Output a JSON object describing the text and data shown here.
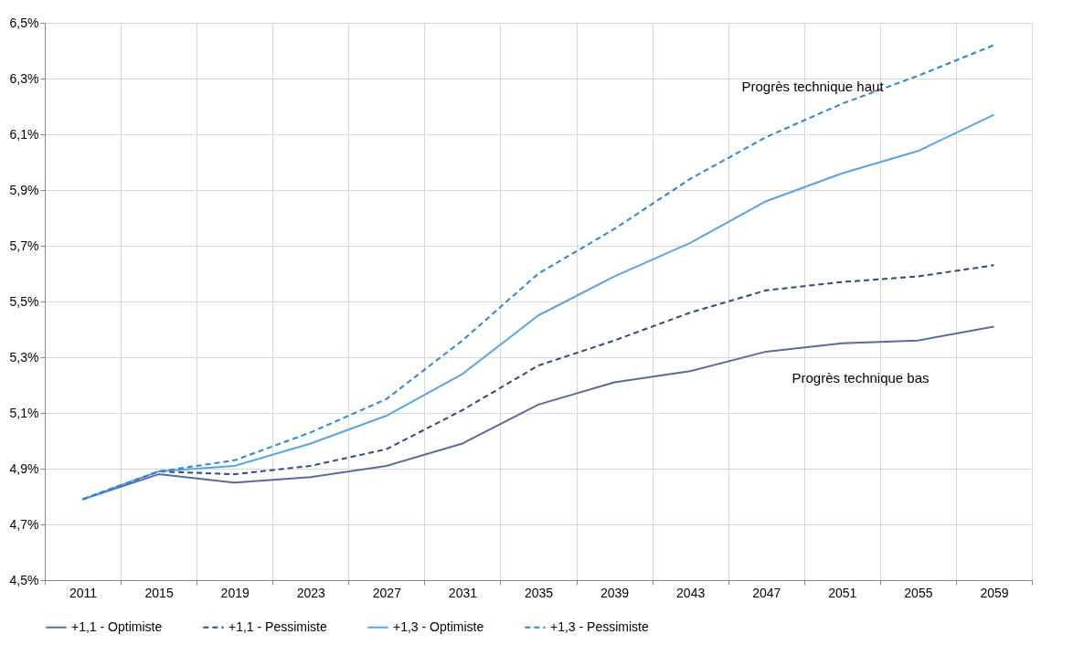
{
  "chart_data": {
    "type": "line",
    "categories": [
      "2011",
      "2015",
      "2019",
      "2023",
      "2027",
      "2031",
      "2035",
      "2039",
      "2043",
      "2047",
      "2051",
      "2055",
      "2059"
    ],
    "series": [
      {
        "name": "+1,1 - Optimiste",
        "color": "#5b6b9a",
        "line_style": "solid",
        "values": [
          4.79,
          4.88,
          4.85,
          4.87,
          4.91,
          4.99,
          5.13,
          5.21,
          5.25,
          5.32,
          5.35,
          5.36,
          5.41
        ]
      },
      {
        "name": "+1,1 - Pessimiste",
        "color": "#2f4b7c",
        "line_style": "dashed",
        "values": [
          4.79,
          4.89,
          4.88,
          4.91,
          4.97,
          5.11,
          5.27,
          5.36,
          5.46,
          5.54,
          5.57,
          5.59,
          5.63
        ]
      },
      {
        "name": "+1,3 - Optimiste",
        "color": "#5ba3de",
        "line_style": "solid",
        "values": [
          4.79,
          4.89,
          4.91,
          4.99,
          5.09,
          5.24,
          5.45,
          5.59,
          5.71,
          5.86,
          5.96,
          6.04,
          6.17
        ]
      },
      {
        "name": "+1,3 - Pessimiste",
        "color": "#2e86d3",
        "line_style": "dashed",
        "values": [
          4.79,
          4.89,
          4.93,
          5.03,
          5.15,
          5.36,
          5.6,
          5.76,
          5.94,
          6.09,
          6.21,
          6.31,
          6.42
        ]
      }
    ],
    "ylim": [
      4.5,
      6.5
    ],
    "yticks": [
      {
        "value": 4.5,
        "label": "4,5%"
      },
      {
        "value": 4.7,
        "label": "4,7%"
      },
      {
        "value": 4.9,
        "label": "4,9%"
      },
      {
        "value": 5.1,
        "label": "5,1%"
      },
      {
        "value": 5.3,
        "label": "5,3%"
      },
      {
        "value": 5.5,
        "label": "5,5%"
      },
      {
        "value": 5.7,
        "label": "5,7%"
      },
      {
        "value": 5.9,
        "label": "5,9%"
      },
      {
        "value": 6.1,
        "label": "6,1%"
      },
      {
        "value": 6.3,
        "label": "6,3%"
      },
      {
        "value": 6.5,
        "label": "6,5%"
      }
    ],
    "annotations": [
      "Progrès technique haut",
      "Progrès technique bas"
    ],
    "grid": true,
    "legend": "bottom",
    "marker": "none"
  }
}
